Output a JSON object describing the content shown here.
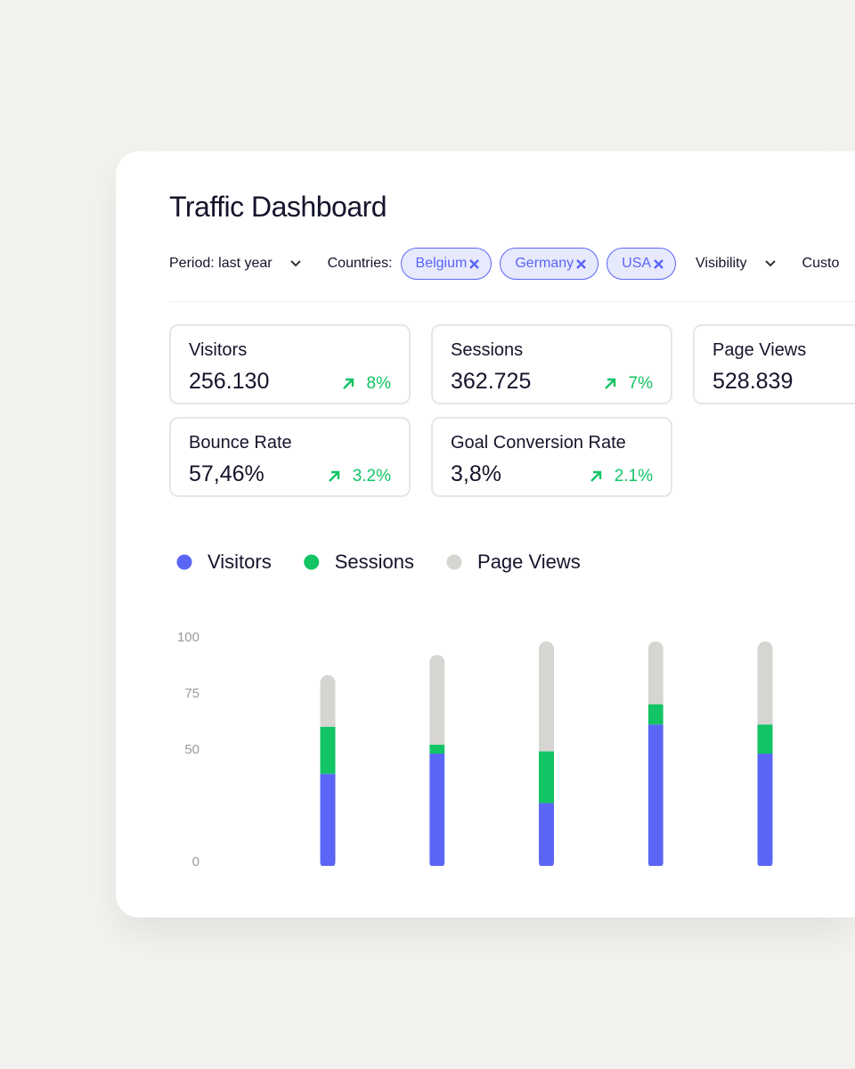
{
  "header": {
    "title": "Traffic Dashboard"
  },
  "filters": {
    "period": "Period: last year",
    "countries_label": "Countries:",
    "countries": [
      "Belgium",
      "Germany",
      "USA"
    ],
    "visibility": "Visibility",
    "custom": "Custo"
  },
  "stats": [
    {
      "label": "Visitors",
      "value": "256.130",
      "change": "8%"
    },
    {
      "label": "Sessions",
      "value": "362.725",
      "change": "7%"
    },
    {
      "label": "Page Views",
      "value": "528.839"
    },
    {
      "label": "Bounce Rate",
      "value": "57,46%",
      "change": "3.2%"
    },
    {
      "label": "Goal Conversion Rate",
      "value": "3,8%",
      "change": "2.1%"
    }
  ],
  "chart_data": {
    "type": "bar",
    "stacked": true,
    "categories": [
      null,
      null,
      null,
      null,
      null
    ],
    "series": [
      {
        "name": "Visitors",
        "color": "#5b66f6",
        "values": [
          41,
          50,
          28,
          63,
          50
        ]
      },
      {
        "name": "Sessions",
        "color": "#12c464",
        "values": [
          21,
          4,
          23,
          9,
          13
        ]
      },
      {
        "name": "Page Views",
        "color": "#d6d5d1",
        "values": [
          23,
          40,
          49,
          28,
          37
        ]
      }
    ],
    "ylim": [
      0,
      100
    ],
    "yticks": [
      0,
      50,
      75,
      100
    ]
  }
}
